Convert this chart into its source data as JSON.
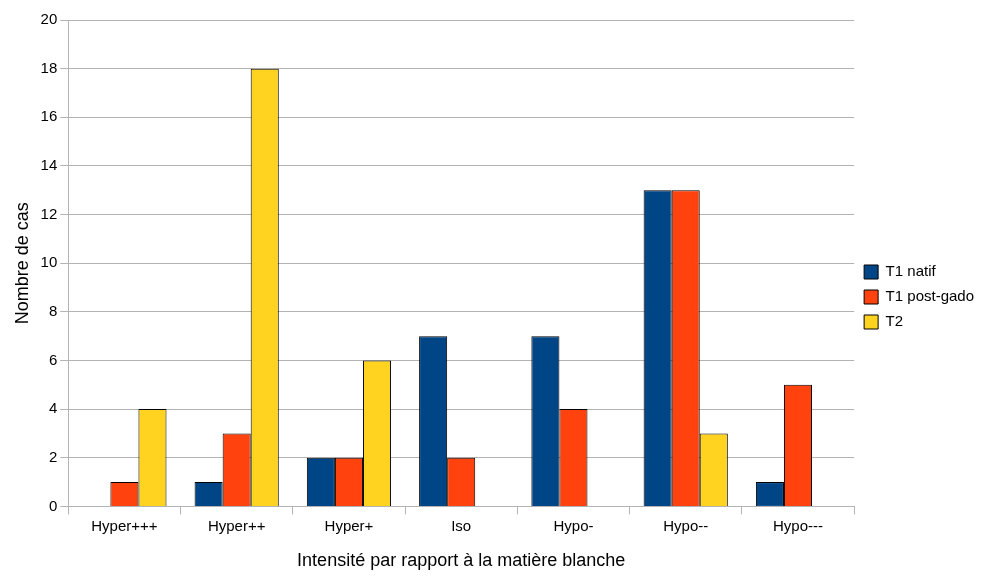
{
  "chart_data": {
    "type": "bar",
    "xlabel": "Intensité par rapport à la matière blanche",
    "ylabel": "Nombre de cas",
    "categories": [
      "Hyper+++",
      "Hyper++",
      "Hyper+",
      "Iso",
      "Hypo-",
      "Hypo--",
      "Hypo---"
    ],
    "series": [
      {
        "name": "T1 natif",
        "color": "#004586",
        "values": [
          0,
          1,
          2,
          7,
          7,
          13,
          1
        ]
      },
      {
        "name": "T1 post-gado",
        "color": "#ff420e",
        "values": [
          1,
          3,
          2,
          2,
          4,
          13,
          5
        ]
      },
      {
        "name": "T2",
        "color": "#ffd320",
        "values": [
          4,
          18,
          6,
          0,
          0,
          3,
          0
        ]
      }
    ],
    "ylim": [
      0,
      20
    ],
    "yticks": [
      0,
      2,
      4,
      6,
      8,
      10,
      12,
      14,
      16,
      18,
      20
    ],
    "grid": "y",
    "legend": "right"
  }
}
